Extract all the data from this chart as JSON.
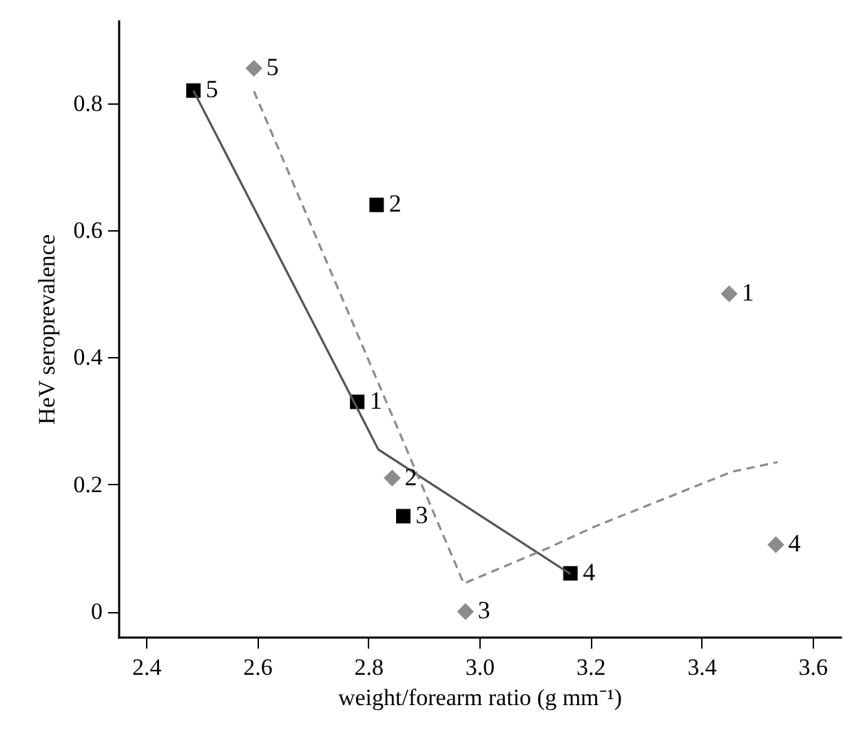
{
  "chart_data": {
    "type": "scatter",
    "xlabel": "weight/forearm ratio (g mm⁻¹)",
    "ylabel": "HeV seroprevalence",
    "xlim": [
      2.35,
      3.65
    ],
    "xticks": [
      2.4,
      2.6,
      2.8,
      {
        "value": 3.0,
        "label": "3.0"
      },
      3.2,
      3.4,
      3.6
    ],
    "ylim": [
      -0.04,
      0.93
    ],
    "yticks": [
      0,
      0.2,
      0.4,
      0.6,
      0.8
    ],
    "grid": false,
    "series": [
      {
        "marker": "square",
        "color": "#000000",
        "x": [
          2.78,
          2.815,
          2.863,
          3.164,
          2.485
        ],
        "values": [
          0.33,
          0.64,
          0.15,
          0.06,
          0.82
        ]
      },
      {
        "marker": "diamond",
        "color": "#8c8c8c",
        "x": [
          3.45,
          2.843,
          2.975,
          3.534,
          2.594
        ],
        "values": [
          0.5,
          0.21,
          0.0,
          0.105,
          0.855
        ]
      },
      {
        "type": "line",
        "line_style": "solid",
        "color": "#555555",
        "x": [
          2.485,
          2.78,
          2.818,
          3.164
        ],
        "values": [
          0.82,
          0.32,
          0.255,
          0.059
        ]
      },
      {
        "type": "line",
        "line_style": "dashed",
        "color": "#8c8c8c",
        "x": [
          2.594,
          2.972,
          3.124,
          3.206,
          3.455,
          3.537
        ],
        "values": [
          0.819,
          0.044,
          0.1,
          0.133,
          0.22,
          0.235
        ]
      }
    ],
    "annotations": [
      {
        "text": "1",
        "x": 2.78,
        "y": 0.33
      },
      {
        "text": "2",
        "x": 2.815,
        "y": 0.64
      },
      {
        "text": "3",
        "x": 2.863,
        "y": 0.15
      },
      {
        "text": "4",
        "x": 3.164,
        "y": 0.06
      },
      {
        "text": "5",
        "x": 2.485,
        "y": 0.82
      },
      {
        "text": "1",
        "x": 3.45,
        "y": 0.5
      },
      {
        "text": "2",
        "x": 2.843,
        "y": 0.21
      },
      {
        "text": "3",
        "x": 2.975,
        "y": 0.0
      },
      {
        "text": "4",
        "x": 3.534,
        "y": 0.105
      },
      {
        "text": "5",
        "x": 2.594,
        "y": 0.855
      }
    ]
  }
}
